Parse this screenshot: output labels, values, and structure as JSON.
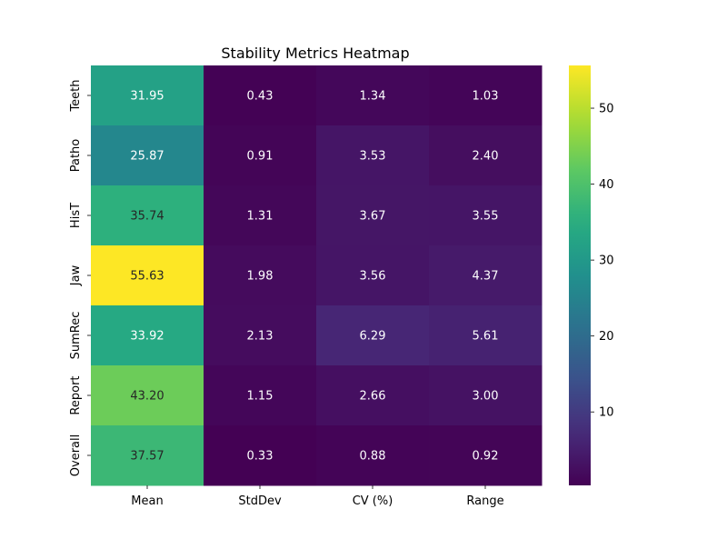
{
  "chart_data": {
    "type": "heatmap",
    "title": "Stability Metrics Heatmap",
    "xlabel": "",
    "ylabel": "",
    "columns": [
      "Mean",
      "StdDev",
      "CV (%)",
      "Range"
    ],
    "rows": [
      "Teeth",
      "Patho",
      "HisT",
      "Jaw",
      "SumRec",
      "Report",
      "Overall"
    ],
    "values": [
      [
        31.95,
        0.43,
        1.34,
        1.03
      ],
      [
        25.87,
        0.91,
        3.53,
        2.4
      ],
      [
        35.74,
        1.31,
        3.67,
        3.55
      ],
      [
        55.63,
        1.98,
        3.56,
        4.37
      ],
      [
        33.92,
        2.13,
        6.29,
        5.61
      ],
      [
        43.2,
        1.15,
        2.66,
        3.0
      ],
      [
        37.57,
        0.33,
        0.88,
        0.92
      ]
    ],
    "value_format": "2 decimals",
    "colormap": "viridis",
    "colorbar": {
      "min": 0.33,
      "max": 55.63,
      "ticks": [
        10,
        20,
        30,
        40,
        50
      ]
    }
  }
}
